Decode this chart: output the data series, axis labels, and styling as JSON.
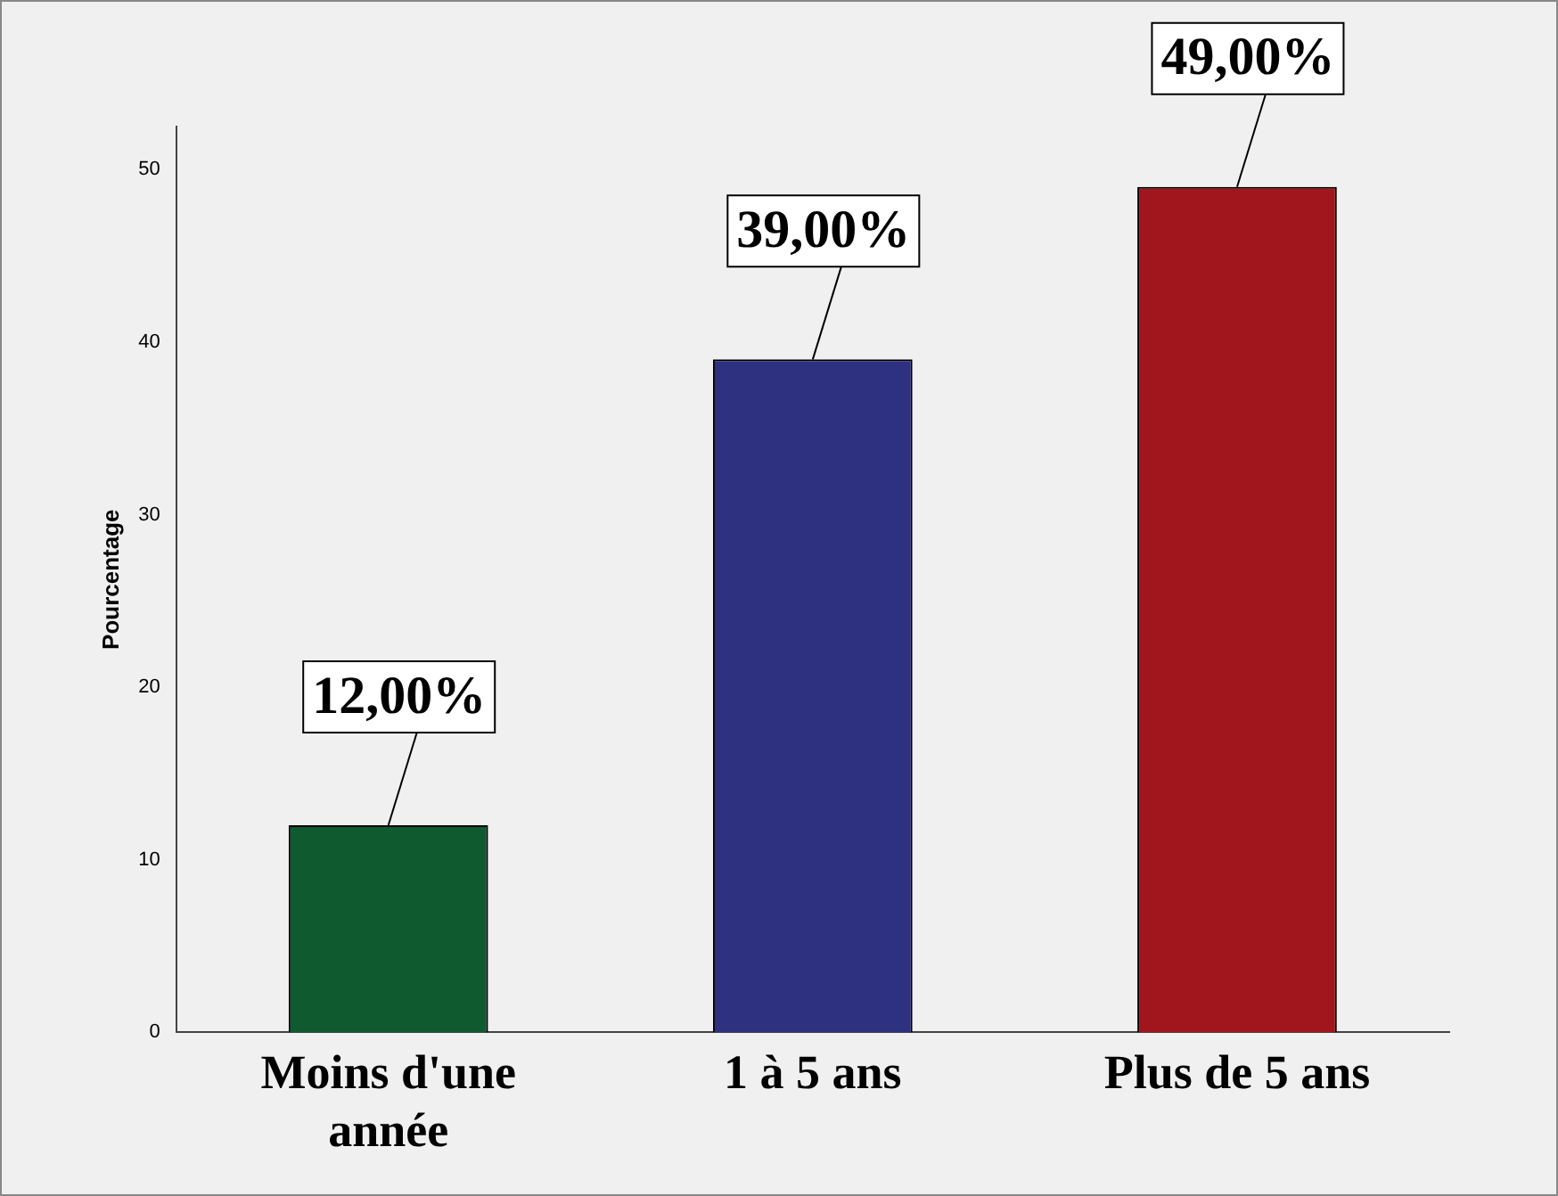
{
  "chart_data": {
    "type": "bar",
    "ylabel": "Pourcentage",
    "categories": [
      "Moins d'une année",
      "1 à 5 ans",
      "Plus de 5 ans"
    ],
    "values": [
      12,
      39,
      49
    ],
    "colors": [
      "#0f5a2e",
      "#2e3080",
      "#a0161c"
    ],
    "value_labels": [
      "12,00%",
      "39,00%",
      "49,00%"
    ],
    "ylim": [
      0,
      52.5
    ],
    "yticks": [
      0,
      10,
      20,
      30,
      40,
      50
    ],
    "grid": false,
    "legend": false
  }
}
